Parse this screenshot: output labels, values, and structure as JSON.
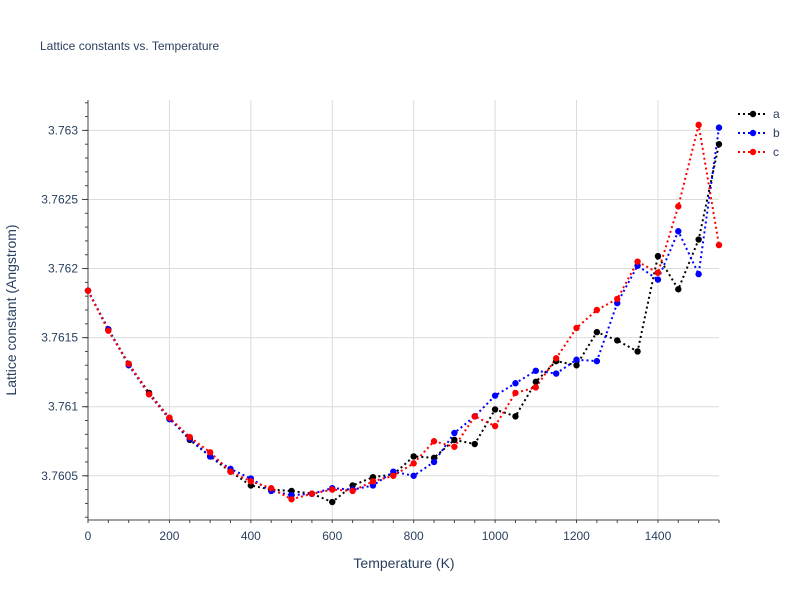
{
  "chart_data": {
    "type": "line",
    "title": "Lattice constants vs. Temperature",
    "xlabel": "Temperature (K)",
    "ylabel": "Lattice constant (Angstrom)",
    "xlim": [
      0,
      1550
    ],
    "ylim": [
      3.76018,
      3.76322
    ],
    "x_ticks": [
      0,
      200,
      400,
      600,
      800,
      1000,
      1200,
      1400
    ],
    "x_tick_labels": [
      "0",
      "200",
      "400",
      "600",
      "800",
      "1000",
      "1200",
      "1400"
    ],
    "y_ticks": [
      3.7605,
      3.761,
      3.7615,
      3.762,
      3.7625,
      3.763
    ],
    "y_tick_labels": [
      "3.7605",
      "3.761",
      "3.7615",
      "3.762",
      "3.7625",
      "3.763"
    ],
    "grid": true,
    "legend_position": "top-right",
    "x": [
      0,
      50,
      100,
      150,
      200,
      250,
      300,
      350,
      400,
      450,
      500,
      550,
      600,
      650,
      700,
      750,
      800,
      850,
      900,
      950,
      1000,
      1050,
      1100,
      1150,
      1200,
      1250,
      1300,
      1350,
      1400,
      1450,
      1500,
      1550
    ],
    "series": [
      {
        "name": "a",
        "color": "#000000",
        "values": [
          3.76184,
          3.76156,
          3.76131,
          3.7611,
          3.76092,
          3.76076,
          3.76064,
          3.76053,
          3.76043,
          3.7604,
          3.76039,
          3.76037,
          3.76031,
          3.76043,
          3.76049,
          3.76051,
          3.76064,
          3.76063,
          3.76076,
          3.76073,
          3.76098,
          3.76093,
          3.76118,
          3.76133,
          3.7613,
          3.76154,
          3.76148,
          3.7614,
          3.76209,
          3.76185,
          3.76221,
          3.7629
        ]
      },
      {
        "name": "b",
        "color": "#0000ff",
        "values": [
          3.76184,
          3.76156,
          3.7613,
          3.76109,
          3.76091,
          3.76077,
          3.76064,
          3.76055,
          3.76048,
          3.76039,
          3.76036,
          3.76037,
          3.76041,
          3.7604,
          3.76043,
          3.76053,
          3.7605,
          3.7606,
          3.76081,
          3.76093,
          3.76108,
          3.76117,
          3.76126,
          3.76124,
          3.76134,
          3.76133,
          3.76175,
          3.76202,
          3.76192,
          3.76227,
          3.76196,
          3.76302
        ]
      },
      {
        "name": "c",
        "color": "#ff0000",
        "values": [
          3.76184,
          3.76155,
          3.76131,
          3.76109,
          3.76092,
          3.76078,
          3.76067,
          3.76053,
          3.76046,
          3.76041,
          3.76033,
          3.76037,
          3.7604,
          3.76039,
          3.76046,
          3.7605,
          3.76059,
          3.76075,
          3.76071,
          3.76093,
          3.76086,
          3.7611,
          3.76114,
          3.76135,
          3.76157,
          3.7617,
          3.76178,
          3.76205,
          3.76197,
          3.76245,
          3.76304,
          3.76217
        ]
      }
    ]
  }
}
